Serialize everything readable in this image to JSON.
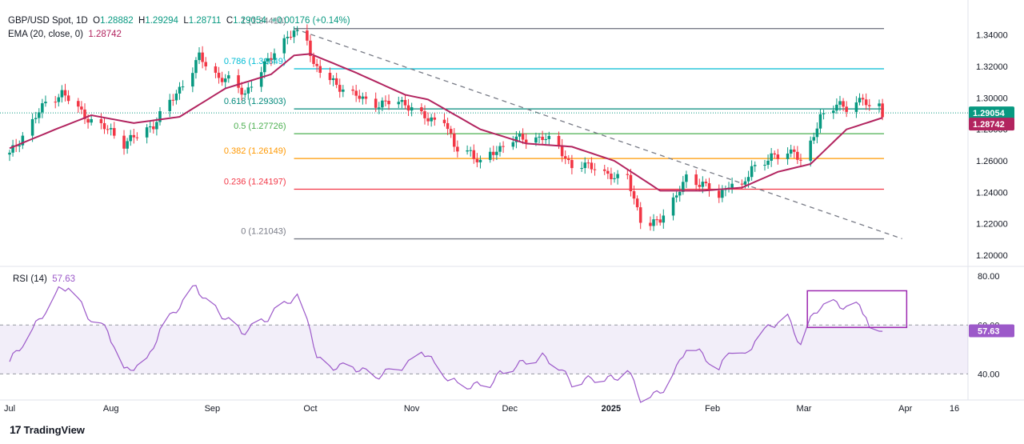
{
  "header": {
    "symbol": "GBP/USD Spot, 1D",
    "open_label": "O",
    "open": "1.28882",
    "high_label": "H",
    "high": "1.29294",
    "low_label": "L",
    "low": "1.28711",
    "close_label": "C",
    "close": "1.29054",
    "change": "+0.00176 (+0.14%)",
    "ema_label": "EMA (20, close, 0)",
    "ema_value": "1.28742",
    "rsi_label": "RSI (14)",
    "rsi_value": "57.63"
  },
  "footer": {
    "brand": "TradingView",
    "logo_icon": "tradingview-logo-icon"
  },
  "colors": {
    "up": "#089981",
    "down": "#f23645",
    "ema": "#b2245f",
    "rsi": "#9c59c9",
    "fib_1": "#787b86",
    "fib_786": "#00bcd4",
    "fib_618": "#00897b",
    "fib_5": "#4caf50",
    "fib_382": "#ff9800",
    "fib_236": "#f23645",
    "fib_0": "#787b86"
  },
  "chart_data": [
    {
      "type": "candlestick",
      "title": "GBP/USD Spot, 1D",
      "x_ticks": [
        "Jul",
        "Aug",
        "Sep",
        "Oct",
        "Nov",
        "Dec",
        "2025",
        "Feb",
        "Mar",
        "Apr",
        "16"
      ],
      "y_ticks": [
        "1.34000",
        "1.32000",
        "1.30000",
        "1.28000",
        "1.26000",
        "1.24000",
        "1.22000",
        "1.20000"
      ],
      "ylim": [
        1.198,
        1.348
      ],
      "last_price_label": "1.29054",
      "ema_price_label": "1.28742",
      "fib_levels": [
        {
          "label": "1 (1.34410)",
          "value": 1.3441
        },
        {
          "label": "0.786 (1.31849)",
          "value": 1.31849
        },
        {
          "label": "0.618 (1.29303)",
          "value": 1.29303
        },
        {
          "label": "0.5 (1.27726)",
          "value": 1.27726
        },
        {
          "label": "0.382 (1.26149)",
          "value": 1.26149
        },
        {
          "label": "0.236 (1.24197)",
          "value": 1.24197
        },
        {
          "label": "0 (1.21043)",
          "value": 1.21043
        }
      ],
      "trendline": {
        "from": [
          "2024-09-26",
          1.3441
        ],
        "to": [
          "2025-03-31",
          1.2105
        ],
        "style": "dashed"
      },
      "anchors": [
        [
          "2024-07-01",
          1.264
        ],
        [
          "2024-07-05",
          1.276
        ],
        [
          "2024-07-12",
          1.297
        ],
        [
          "2024-07-17",
          1.303
        ],
        [
          "2024-07-22",
          1.293
        ],
        [
          "2024-07-26",
          1.285
        ],
        [
          "2024-08-01",
          1.279
        ],
        [
          "2024-08-05",
          1.271
        ],
        [
          "2024-08-09",
          1.276
        ],
        [
          "2024-08-14",
          1.283
        ],
        [
          "2024-08-20",
          1.3
        ],
        [
          "2024-08-26",
          1.318
        ],
        [
          "2024-08-28",
          1.326
        ],
        [
          "2024-09-03",
          1.313
        ],
        [
          "2024-09-06",
          1.311
        ],
        [
          "2024-09-11",
          1.303
        ],
        [
          "2024-09-16",
          1.317
        ],
        [
          "2024-09-20",
          1.33
        ],
        [
          "2024-09-24",
          1.339
        ],
        [
          "2024-09-26",
          1.341
        ],
        [
          "2024-09-30",
          1.338
        ],
        [
          "2024-10-02",
          1.321
        ],
        [
          "2024-10-07",
          1.311
        ],
        [
          "2024-10-11",
          1.306
        ],
        [
          "2024-10-17",
          1.299
        ],
        [
          "2024-10-22",
          1.296
        ],
        [
          "2024-10-25",
          1.297
        ],
        [
          "2024-10-30",
          1.297
        ],
        [
          "2024-11-01",
          1.293
        ],
        [
          "2024-11-06",
          1.286
        ],
        [
          "2024-11-11",
          1.287
        ],
        [
          "2024-11-14",
          1.268
        ],
        [
          "2024-11-19",
          1.266
        ],
        [
          "2024-11-22",
          1.258
        ],
        [
          "2024-11-27",
          1.267
        ],
        [
          "2024-12-02",
          1.274
        ],
        [
          "2024-12-06",
          1.274
        ],
        [
          "2024-12-11",
          1.275
        ],
        [
          "2024-12-16",
          1.269
        ],
        [
          "2024-12-20",
          1.256
        ],
        [
          "2024-12-27",
          1.257
        ],
        [
          "2025-01-02",
          1.248
        ],
        [
          "2025-01-06",
          1.252
        ],
        [
          "2025-01-08",
          1.236
        ],
        [
          "2025-01-10",
          1.221
        ],
        [
          "2025-01-13",
          1.219
        ],
        [
          "2025-01-16",
          1.224
        ],
        [
          "2025-01-21",
          1.237
        ],
        [
          "2025-01-24",
          1.25
        ],
        [
          "2025-01-29",
          1.245
        ],
        [
          "2025-02-03",
          1.237
        ],
        [
          "2025-02-06",
          1.246
        ],
        [
          "2025-02-10",
          1.242
        ],
        [
          "2025-02-13",
          1.256
        ],
        [
          "2025-02-18",
          1.261
        ],
        [
          "2025-02-21",
          1.263
        ],
        [
          "2025-02-26",
          1.267
        ],
        [
          "2025-02-28",
          1.258
        ],
        [
          "2025-03-03",
          1.27
        ],
        [
          "2025-03-06",
          1.289
        ],
        [
          "2025-03-11",
          1.295
        ],
        [
          "2025-03-14",
          1.294
        ],
        [
          "2025-03-19",
          1.3
        ],
        [
          "2025-03-21",
          1.292
        ],
        [
          "2025-03-24",
          1.295
        ],
        [
          "2025-03-25",
          1.2905
        ]
      ],
      "ema_anchors": [
        [
          "2024-07-01",
          1.268
        ],
        [
          "2024-07-15",
          1.28
        ],
        [
          "2024-07-26",
          1.289
        ],
        [
          "2024-08-08",
          1.284
        ],
        [
          "2024-08-22",
          1.288
        ],
        [
          "2024-09-05",
          1.306
        ],
        [
          "2024-09-19",
          1.315
        ],
        [
          "2024-09-26",
          1.327
        ],
        [
          "2024-10-01",
          1.328
        ],
        [
          "2024-10-15",
          1.316
        ],
        [
          "2024-10-30",
          1.302
        ],
        [
          "2024-11-06",
          1.299
        ],
        [
          "2024-11-22",
          1.28
        ],
        [
          "2024-12-06",
          1.271
        ],
        [
          "2024-12-20",
          1.269
        ],
        [
          "2025-01-02",
          1.26
        ],
        [
          "2025-01-16",
          1.241
        ],
        [
          "2025-01-29",
          1.241
        ],
        [
          "2025-02-10",
          1.243
        ],
        [
          "2025-02-21",
          1.253
        ],
        [
          "2025-03-03",
          1.258
        ],
        [
          "2025-03-14",
          1.28
        ],
        [
          "2025-03-25",
          1.2874
        ]
      ]
    },
    {
      "type": "line",
      "title": "RSI (14)",
      "series_name": "RSI (14)",
      "y_ticks": [
        "80.00",
        "60.00",
        "40.00"
      ],
      "ylim": [
        30,
        82
      ],
      "band": [
        40,
        60
      ],
      "last_value_label": "57.63",
      "highlight_box": {
        "from": "2025-03-03",
        "to": "2025-03-28",
        "low": 59,
        "high": 74
      },
      "anchors": [
        [
          "2024-07-01",
          45
        ],
        [
          "2024-07-08",
          58
        ],
        [
          "2024-07-16",
          74
        ],
        [
          "2024-07-19",
          76
        ],
        [
          "2024-07-26",
          62
        ],
        [
          "2024-07-31",
          58
        ],
        [
          "2024-08-05",
          41
        ],
        [
          "2024-08-08",
          43
        ],
        [
          "2024-08-12",
          45
        ],
        [
          "2024-08-16",
          58
        ],
        [
          "2024-08-22",
          68
        ],
        [
          "2024-08-27",
          76
        ],
        [
          "2024-08-30",
          70
        ],
        [
          "2024-09-05",
          63
        ],
        [
          "2024-09-10",
          57
        ],
        [
          "2024-09-13",
          59
        ],
        [
          "2024-09-18",
          63
        ],
        [
          "2024-09-24",
          70
        ],
        [
          "2024-09-27",
          71
        ],
        [
          "2024-10-01",
          59
        ],
        [
          "2024-10-03",
          46
        ],
        [
          "2024-10-07",
          43
        ],
        [
          "2024-10-14",
          43
        ],
        [
          "2024-10-21",
          39
        ],
        [
          "2024-10-25",
          41
        ],
        [
          "2024-10-31",
          44
        ],
        [
          "2024-11-04",
          50
        ],
        [
          "2024-11-08",
          44
        ],
        [
          "2024-11-13",
          37
        ],
        [
          "2024-11-19",
          35
        ],
        [
          "2024-11-25",
          36
        ],
        [
          "2024-11-28",
          40
        ],
        [
          "2024-12-04",
          44
        ],
        [
          "2024-12-11",
          47
        ],
        [
          "2024-12-16",
          43
        ],
        [
          "2024-12-20",
          36
        ],
        [
          "2024-12-26",
          38
        ],
        [
          "2025-01-02",
          38
        ],
        [
          "2025-01-06",
          42
        ],
        [
          "2025-01-10",
          30
        ],
        [
          "2025-01-14",
          31
        ],
        [
          "2025-01-17",
          34
        ],
        [
          "2025-01-21",
          42
        ],
        [
          "2025-01-24",
          51
        ],
        [
          "2025-01-29",
          48
        ],
        [
          "2025-02-03",
          41
        ],
        [
          "2025-02-06",
          50
        ],
        [
          "2025-02-11",
          47
        ],
        [
          "2025-02-14",
          54
        ],
        [
          "2025-02-19",
          60
        ],
        [
          "2025-02-24",
          63
        ],
        [
          "2025-02-28",
          52
        ],
        [
          "2025-03-03",
          62
        ],
        [
          "2025-03-06",
          68
        ],
        [
          "2025-03-11",
          69
        ],
        [
          "2025-03-14",
          67
        ],
        [
          "2025-03-18",
          68
        ],
        [
          "2025-03-20",
          64
        ],
        [
          "2025-03-21",
          58
        ],
        [
          "2025-03-24",
          56
        ],
        [
          "2025-03-25",
          57.63
        ]
      ]
    }
  ]
}
